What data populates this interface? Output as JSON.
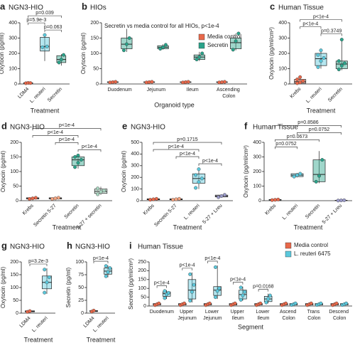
{
  "chart_data": [
    {
      "type": "box",
      "label": "a",
      "title": "NGN3-HIO",
      "xlabel": "Treatment",
      "ylabel": "Oxytocin (pg/ml)",
      "ylim": [
        0,
        400
      ],
      "yticks": [
        0,
        100,
        200,
        300,
        400
      ],
      "categories": [
        "LDM4",
        "L. reuteri",
        "Secretin"
      ],
      "boxes": [
        {
          "color": "#e8684a",
          "stats": [
            2,
            4,
            6,
            8,
            10
          ],
          "points": [
            5,
            7,
            6
          ]
        },
        {
          "color": "#5bc8dc",
          "stats": [
            150,
            215,
            245,
            305,
            325
          ],
          "points": [
            240,
            320,
            245
          ]
        },
        {
          "color": "#2aa38a",
          "stats": [
            120,
            140,
            160,
            185,
            195
          ],
          "points": [
            140,
            160,
            190
          ]
        }
      ],
      "comparisons": [
        {
          "pair": [
            "L. reuteri",
            "Secretin"
          ],
          "label": "p=0.063"
        },
        {
          "pair": [
            "LDM4",
            "L. reuteri"
          ],
          "label": "p=5.9e-3"
        },
        {
          "pair": [
            "LDM4",
            "Secretin"
          ],
          "label": "p=0.039"
        }
      ]
    },
    {
      "type": "grouped-box",
      "label": "b",
      "title": "HIOs",
      "subtitle": "Secretin vs media control for all HIOs, p<1e-4",
      "xlabel": "Organoid type",
      "ylabel": "Oxytocin (pg/ml)",
      "legend": "upper right",
      "ylim": [
        0,
        200
      ],
      "yticks": [
        0,
        50,
        100,
        150,
        200
      ],
      "categories": [
        "Duodenum",
        "Jejunum",
        "Ileum",
        "Ascending Colon"
      ],
      "series": [
        {
          "name": "Media control",
          "color": "#e8684a",
          "boxes": [
            {
              "stats": [
                4,
                5,
                6,
                7,
                8
              ],
              "points": [
                5,
                6,
                7
              ]
            },
            {
              "stats": [
                4,
                5,
                6,
                7,
                8
              ],
              "points": [
                5,
                6,
                7
              ]
            },
            {
              "stats": [
                4,
                5,
                6,
                7,
                8
              ],
              "points": [
                5,
                6,
                7
              ]
            },
            {
              "stats": [
                4,
                5,
                6,
                7,
                8
              ],
              "points": [
                5,
                6,
                7
              ]
            }
          ]
        },
        {
          "name": "Secretin",
          "color": "#2aa38a",
          "boxes": [
            {
              "stats": [
                105,
                115,
                130,
                150,
                180
              ],
              "points": [
                110,
                130,
                150
              ]
            },
            {
              "stats": [
                112,
                115,
                120,
                125,
                130
              ],
              "points": [
                115,
                120,
                128
              ]
            },
            {
              "stats": [
                75,
                80,
                88,
                95,
                105
              ],
              "points": [
                80,
                88,
                100
              ]
            },
            {
              "stats": [
                110,
                115,
                135,
                150,
                165
              ],
              "points": [
                112,
                140,
                165
              ]
            }
          ]
        }
      ]
    },
    {
      "type": "box",
      "label": "c",
      "title": "Human Tissue",
      "xlabel": "Treatment",
      "ylabel": "Oxytocin (pg/ml/cm²)",
      "ylim": [
        0,
        400
      ],
      "yticks": [
        0,
        100,
        200,
        300,
        400
      ],
      "categories": [
        "Krebs",
        "L. reuteri",
        "Secretin"
      ],
      "boxes": [
        {
          "color": "#e8684a",
          "stats": [
            0,
            5,
            15,
            30,
            50
          ],
          "points": [
            5,
            10,
            20,
            30,
            45
          ]
        },
        {
          "color": "#5bc8dc",
          "stats": [
            100,
            120,
            165,
            200,
            230
          ],
          "points": [
            110,
            150,
            170,
            190,
            220
          ]
        },
        {
          "color": "#2aa38a",
          "stats": [
            90,
            100,
            130,
            150,
            300
          ],
          "points": [
            95,
            120,
            135,
            150,
            290
          ]
        }
      ],
      "comparisons": [
        {
          "pair": [
            "L. reuteri",
            "Secretin"
          ],
          "label": "p=0.3749"
        },
        {
          "pair": [
            "Krebs",
            "L. reuteri"
          ],
          "label": "p<1e-4"
        },
        {
          "pair": [
            "Krebs",
            "Secretin"
          ],
          "label": "p<1e-4"
        }
      ]
    },
    {
      "type": "box",
      "label": "d",
      "title": "NGN3-HIO",
      "xlabel": "Treatment",
      "ylabel": "Oxytocin (pg/ml)",
      "ylim": [
        0,
        200
      ],
      "yticks": [
        0,
        50,
        100,
        150,
        200
      ],
      "categories": [
        "Krebs",
        "Secretin 5-27",
        "Secretin",
        "5-27 + secretin"
      ],
      "boxes": [
        {
          "color": "#e8684a",
          "stats": [
            4,
            6,
            8,
            10,
            12
          ],
          "points": [
            6,
            8,
            10
          ]
        },
        {
          "color": "#f4a582",
          "stats": [
            4,
            6,
            8,
            10,
            12
          ],
          "points": [
            6,
            8,
            10
          ]
        },
        {
          "color": "#2aa38a",
          "stats": [
            110,
            120,
            140,
            150,
            160
          ],
          "points": [
            115,
            130,
            140,
            150,
            155
          ]
        },
        {
          "color": "#a8d5c0",
          "stats": [
            20,
            25,
            32,
            40,
            48
          ],
          "points": [
            22,
            30,
            35,
            42
          ]
        }
      ],
      "comparisons": [
        {
          "pair": [
            "Secretin",
            "5-27 + secretin"
          ],
          "label": "p<1e-4"
        },
        {
          "pair": [
            "Secretin 5-27",
            "Secretin"
          ],
          "label": "p<1e-4"
        },
        {
          "pair": [
            "Krebs",
            "Secretin"
          ],
          "label": "p<1e-4"
        },
        {
          "pair": [
            "Krebs",
            "5-27 + secretin"
          ],
          "label": "p<1e-4"
        }
      ]
    },
    {
      "type": "box",
      "label": "e",
      "title": "NGN3-HIO",
      "xlabel": "Treatment",
      "ylabel": "Oxytocin (pg/ml)",
      "ylim": [
        0,
        500
      ],
      "yticks": [
        0,
        100,
        200,
        300,
        400,
        500
      ],
      "categories": [
        "Krebs",
        "Secretin 5-27",
        "L. reuteri",
        "5-27 + Lreu"
      ],
      "boxes": [
        {
          "color": "#e8684a",
          "stats": [
            5,
            8,
            12,
            16,
            20
          ],
          "points": [
            8,
            12,
            16
          ]
        },
        {
          "color": "#f4a582",
          "stats": [
            5,
            8,
            12,
            16,
            20
          ],
          "points": [
            8,
            12,
            16
          ]
        },
        {
          "color": "#5bc8dc",
          "stats": [
            100,
            150,
            190,
            230,
            280
          ],
          "points": [
            110,
            160,
            190,
            220,
            270
          ]
        },
        {
          "color": "#9a9ac8",
          "stats": [
            25,
            32,
            40,
            48,
            55
          ],
          "points": [
            30,
            40,
            50
          ]
        }
      ],
      "comparisons": [
        {
          "pair": [
            "L. reuteri",
            "5-27 + Lreu"
          ],
          "label": "p<1e-4"
        },
        {
          "pair": [
            "Secretin 5-27",
            "L. reuteri"
          ],
          "label": "p<1e-4"
        },
        {
          "pair": [
            "Krebs",
            "L. reuteri"
          ],
          "label": "p<1e-4"
        },
        {
          "pair": [
            "Krebs",
            "5-27 + Lreu"
          ],
          "label": "p=0.1715"
        }
      ]
    },
    {
      "type": "box",
      "label": "f",
      "title": "Human Tissue",
      "xlabel": "Treatment",
      "ylabel": "Oxytocin (pg/ml/cm²)",
      "ylim": [
        0,
        400
      ],
      "yticks": [
        0,
        100,
        200,
        300,
        400
      ],
      "categories": [
        "Krebs",
        "L. reuteri",
        "Secretin",
        "5-27 + Lreu"
      ],
      "boxes": [
        {
          "color": "#e8684a",
          "stats": [
            2,
            4,
            6,
            8,
            10
          ],
          "points": [
            4,
            6,
            8
          ]
        },
        {
          "color": "#5bc8dc",
          "stats": [
            160,
            165,
            175,
            185,
            190
          ],
          "points": [
            165,
            175,
            185
          ]
        },
        {
          "color": "#2aa38a",
          "stats": [
            120,
            130,
            180,
            280,
            340
          ],
          "points": [
            130,
            170,
            280
          ]
        },
        {
          "color": "#9a9ac8",
          "stats": [
            0,
            1,
            2,
            3,
            4
          ],
          "points": [
            1,
            2,
            3
          ]
        }
      ],
      "comparisons": [
        {
          "pair": [
            "Krebs",
            "L. reuteri"
          ],
          "label": "p=0.0752"
        },
        {
          "pair": [
            "Krebs",
            "Secretin"
          ],
          "label": "p=0.0673"
        },
        {
          "pair": [
            "L. reuteri",
            "5-27 + Lreu"
          ],
          "label": "p=0.0752"
        },
        {
          "pair": [
            "Krebs",
            "5-27 + Lreu"
          ],
          "label": "p=0.8586"
        }
      ]
    },
    {
      "type": "box",
      "label": "g",
      "title": "NGN3-HIO",
      "xlabel": "Treatment",
      "ylabel": "Oxytocin (pg/ml)",
      "ylim": [
        0,
        200
      ],
      "yticks": [
        0,
        50,
        100,
        150,
        200
      ],
      "categories": [
        "LDM4",
        "L. reuteri"
      ],
      "boxes": [
        {
          "color": "#e8684a",
          "stats": [
            3,
            5,
            7,
            9,
            11
          ],
          "points": [
            5,
            8
          ]
        },
        {
          "color": "#5bc8dc",
          "stats": [
            75,
            95,
            120,
            145,
            175
          ],
          "points": [
            80,
            120,
            140,
            170
          ]
        }
      ],
      "comparisons": [
        {
          "pair": [
            "LDM4",
            "L. reuteri"
          ],
          "label": "p=3.2e-3"
        }
      ]
    },
    {
      "type": "box",
      "label": "h",
      "title": "NGN3-HIO",
      "xlabel": "Treatment",
      "ylabel": "Secretin (pg/ml)",
      "ylim": [
        0,
        100
      ],
      "yticks": [
        0,
        25,
        50,
        75,
        100
      ],
      "categories": [
        "LDM4",
        "L. reuteri"
      ],
      "boxes": [
        {
          "color": "#e8684a",
          "stats": [
            2,
            3,
            4,
            5,
            6
          ],
          "points": [
            3,
            5
          ]
        },
        {
          "color": "#5bc8dc",
          "stats": [
            70,
            76,
            82,
            88,
            93
          ],
          "points": [
            72,
            80,
            88,
            92
          ]
        }
      ],
      "comparisons": [
        {
          "pair": [
            "LDM4",
            "L. reuteri"
          ],
          "label": "p<1e-4"
        }
      ]
    },
    {
      "type": "grouped-box",
      "label": "i",
      "title": "Human Tissue",
      "xlabel": "Segment",
      "ylabel": "Secretin (pg/ml/cm²)",
      "legend": "upper right",
      "ylim": [
        0,
        250
      ],
      "yticks": [
        0,
        50,
        100,
        150,
        200,
        250
      ],
      "categories": [
        "Duodenum",
        "Upper Jejunum",
        "Lower Jejunum",
        "Upper Ileum",
        "Lower Ileum",
        "Ascend Colon",
        "Trans Colon",
        "Descend Colon"
      ],
      "series": [
        {
          "name": "Media control",
          "color": "#e8684a",
          "boxes": [
            {
              "stats": [
                2,
                6,
                10,
                14,
                20
              ],
              "points": [
                5,
                10,
                15
              ]
            },
            {
              "stats": [
                2,
                6,
                10,
                14,
                20
              ],
              "points": [
                5,
                10,
                15
              ]
            },
            {
              "stats": [
                2,
                6,
                10,
                14,
                20
              ],
              "points": [
                5,
                10,
                15
              ]
            },
            {
              "stats": [
                2,
                6,
                10,
                14,
                20
              ],
              "points": [
                5,
                10,
                15
              ]
            },
            {
              "stats": [
                2,
                6,
                10,
                14,
                20
              ],
              "points": [
                5,
                10,
                15
              ]
            },
            {
              "stats": [
                2,
                6,
                10,
                14,
                20
              ],
              "points": [
                5,
                10,
                15
              ]
            },
            {
              "stats": [
                2,
                6,
                10,
                14,
                20
              ],
              "points": [
                5,
                10,
                15
              ]
            },
            {
              "stats": [
                2,
                6,
                10,
                14,
                20
              ],
              "points": [
                5,
                10,
                15
              ]
            }
          ]
        },
        {
          "name": "L. reuteri 6475",
          "color": "#5bc8dc",
          "boxes": [
            {
              "stats": [
                40,
                55,
                70,
                80,
                90
              ],
              "points": [
                45,
                65,
                75,
                85
              ]
            },
            {
              "stats": [
                20,
                40,
                90,
                150,
                190
              ],
              "points": [
                30,
                80,
                120,
                180
              ]
            },
            {
              "stats": [
                40,
                60,
                90,
                110,
                230
              ],
              "points": [
                50,
                85,
                100,
                220
              ]
            },
            {
              "stats": [
                30,
                40,
                65,
                90,
                110
              ],
              "points": [
                35,
                60,
                80,
                105
              ]
            },
            {
              "stats": [
                15,
                25,
                40,
                55,
                70
              ],
              "points": [
                20,
                40,
                60
              ]
            },
            {
              "stats": [
                3,
                6,
                10,
                14,
                20
              ],
              "points": [
                6,
                10,
                15
              ]
            },
            {
              "stats": [
                3,
                6,
                10,
                14,
                20
              ],
              "points": [
                6,
                10,
                15
              ]
            },
            {
              "stats": [
                3,
                6,
                10,
                14,
                20
              ],
              "points": [
                6,
                10,
                15
              ]
            }
          ]
        }
      ],
      "comparisons": [
        {
          "category": "Duodenum",
          "label": "p<1e-4"
        },
        {
          "category": "Upper Jejunum",
          "label": "p<1e-4"
        },
        {
          "category": "Lower Jejunum",
          "label": "p<1e-4"
        },
        {
          "category": "Upper Ileum",
          "label": "p<1e-4"
        },
        {
          "category": "Lower Ileum",
          "label": "p=0.0168"
        }
      ]
    }
  ]
}
